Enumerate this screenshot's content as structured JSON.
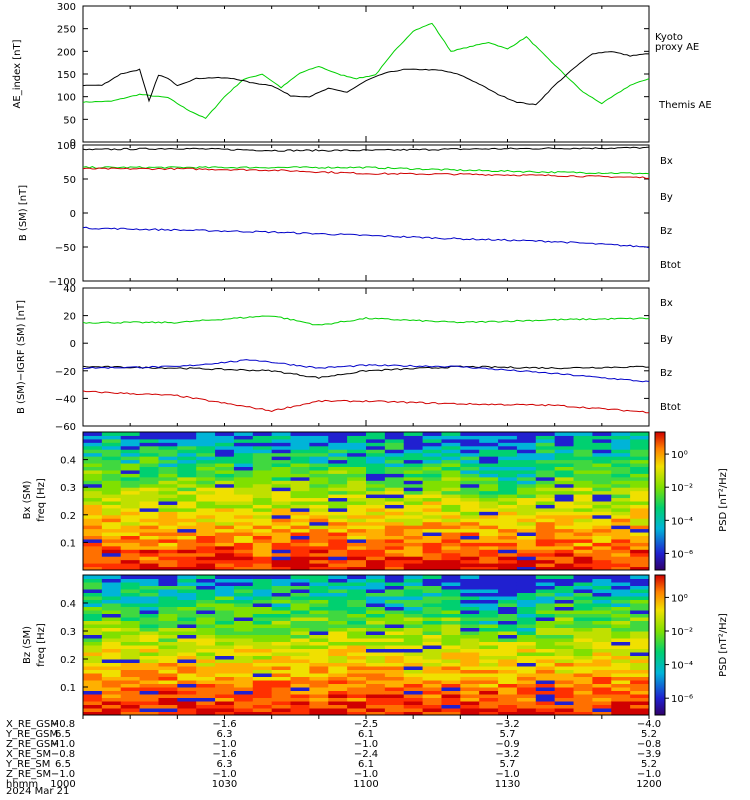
{
  "colors": {
    "kyoto": "#00d000",
    "themis": "#000000",
    "bx": "#0000c8",
    "by": "#00d000",
    "bz": "#d00000",
    "btot": "#000000"
  },
  "chart_data": [
    {
      "type": "line",
      "panel": "ae",
      "ylabel": "AE_index [nT]",
      "ylim": [
        0,
        300
      ],
      "yticks": [
        "300",
        "250",
        "200",
        "150",
        "100",
        "50",
        "0"
      ],
      "series": [
        {
          "name": "Kyoto proxy AE",
          "legend": [
            "Kyoto",
            "proxy AE"
          ],
          "color_key": "kyoto",
          "x": [
            0,
            3,
            6,
            9,
            11,
            13,
            15,
            17,
            19,
            21,
            23,
            25,
            27,
            29,
            31,
            33,
            35,
            37,
            39,
            41,
            43,
            45,
            47,
            49,
            51,
            53,
            55,
            58,
            60
          ],
          "y": [
            88,
            90,
            105,
            98,
            72,
            52,
            100,
            138,
            150,
            120,
            152,
            167,
            150,
            140,
            148,
            200,
            245,
            262,
            200,
            210,
            220,
            205,
            232,
            190,
            150,
            110,
            85,
            125,
            140
          ]
        },
        {
          "name": "Themis AE",
          "legend": [
            "Themis AE"
          ],
          "color_key": "themis",
          "x": [
            0,
            2,
            4,
            6,
            7,
            8,
            9,
            10,
            12,
            14,
            16,
            18,
            20,
            22,
            24,
            26,
            28,
            30,
            32,
            34,
            36,
            38,
            40,
            42,
            44,
            46,
            48,
            50,
            52,
            54,
            56,
            58,
            60
          ],
          "y": [
            125,
            125,
            150,
            160,
            90,
            148,
            140,
            125,
            140,
            142,
            140,
            130,
            125,
            102,
            100,
            118,
            110,
            135,
            152,
            160,
            160,
            158,
            148,
            128,
            105,
            88,
            82,
            125,
            162,
            195,
            200,
            190,
            195
          ]
        }
      ]
    },
    {
      "type": "line",
      "panel": "b-sm",
      "ylabel": "B (SM) [nT]",
      "ylim": [
        -100,
        100
      ],
      "yticks": [
        "100",
        "50",
        "0",
        "−50",
        "−100"
      ],
      "series": [
        {
          "name": "Btot",
          "color_key": "btot",
          "x": [
            0,
            10,
            20,
            30,
            40,
            50,
            60
          ],
          "y": [
            93,
            95,
            92,
            92,
            94,
            95,
            96
          ]
        },
        {
          "name": "By",
          "color_key": "by",
          "x": [
            0,
            10,
            20,
            30,
            40,
            50,
            60
          ],
          "y": [
            67,
            67,
            67,
            67,
            63,
            60,
            58
          ]
        },
        {
          "name": "Bx",
          "color_key": "bz",
          "x": [
            0,
            10,
            20,
            30,
            40,
            50,
            60
          ],
          "y": [
            65,
            65,
            63,
            58,
            57,
            55,
            52
          ]
        },
        {
          "name": "Bz",
          "color_key": "bx",
          "x": [
            0,
            10,
            20,
            30,
            40,
            50,
            60
          ],
          "y": [
            -22,
            -25,
            -28,
            -33,
            -38,
            -42,
            -50
          ]
        }
      ],
      "legend": [
        "Bx",
        "By",
        "Bz",
        "Btot"
      ]
    },
    {
      "type": "line",
      "panel": "b-sm-igrf",
      "ylabel": "B (SM)−IGRF (SM) [nT]",
      "ylim": [
        -60,
        40
      ],
      "yticks": [
        "40",
        "20",
        "0",
        "−20",
        "−40",
        "−60"
      ],
      "series": [
        {
          "name": "By",
          "color_key": "by",
          "x": [
            0,
            10,
            20,
            25,
            30,
            40,
            50,
            60
          ],
          "y": [
            15,
            15,
            20,
            13,
            18,
            15,
            17,
            18
          ]
        },
        {
          "name": "Btot",
          "color_key": "btot",
          "x": [
            0,
            10,
            20,
            25,
            30,
            40,
            50,
            60
          ],
          "y": [
            -17,
            -18,
            -20,
            -25,
            -20,
            -17,
            -18,
            -17
          ]
        },
        {
          "name": "Bx",
          "color_key": "bx",
          "x": [
            0,
            10,
            18,
            25,
            30,
            40,
            50,
            60
          ],
          "y": [
            -18,
            -17,
            -12,
            -18,
            -16,
            -17,
            -22,
            -28
          ]
        },
        {
          "name": "Bz",
          "color_key": "bz",
          "x": [
            0,
            10,
            20,
            25,
            30,
            40,
            50,
            60
          ],
          "y": [
            -35,
            -38,
            -49,
            -42,
            -42,
            -44,
            -45,
            -50
          ]
        }
      ],
      "legend": [
        "Bx",
        "By",
        "Bz",
        "Btot"
      ]
    },
    {
      "type": "heatmap",
      "panel": "bx-psd",
      "ylabel": [
        "Bx (SM)",
        "freq [Hz]"
      ],
      "ylim": [
        0,
        0.5
      ],
      "yticks": [
        "0.4",
        "0.3",
        "0.2",
        "0.1"
      ],
      "colorbar_label": "PSD [nT²/Hz]",
      "colorbar_ticks": [
        "10⁰",
        "10⁻²",
        "10⁻⁴",
        "10⁻⁶"
      ]
    },
    {
      "type": "heatmap",
      "panel": "bz-psd",
      "ylabel": [
        "Bz (SM)",
        "freq [Hz]"
      ],
      "ylim": [
        0,
        0.5
      ],
      "yticks": [
        "0.4",
        "0.3",
        "0.2",
        "0.1"
      ],
      "colorbar_label": "PSD [nT²/Hz]",
      "colorbar_ticks": [
        "10⁰",
        "10⁻²",
        "10⁻⁴",
        "10⁻⁶"
      ]
    }
  ],
  "x_axis": {
    "rows": [
      {
        "label": "X_RE_GSM",
        "values": [
          "−0.8",
          "−1.6",
          "−2.5",
          "−3.2",
          "−4.0"
        ]
      },
      {
        "label": "Y_RE_GSM",
        "values": [
          "6.5",
          "6.3",
          "6.1",
          "5.7",
          "5.2"
        ]
      },
      {
        "label": "Z_RE_GSM",
        "values": [
          "−1.0",
          "−1.0",
          "−1.0",
          "−0.9",
          "−0.8"
        ]
      },
      {
        "label": "X_RE_SM",
        "values": [
          "−0.8",
          "−1.6",
          "−2.4",
          "−3.2",
          "−3.9"
        ]
      },
      {
        "label": "Y_RE_SM",
        "values": [
          "6.5",
          "6.3",
          "6.1",
          "5.7",
          "5.2"
        ]
      },
      {
        "label": "Z_RE_SM",
        "values": [
          "−1.0",
          "−1.0",
          "−1.0",
          "−1.0",
          "−1.0"
        ]
      },
      {
        "label": "hhmm",
        "values": [
          "1000",
          "1030",
          "1100",
          "1130",
          "1200"
        ]
      }
    ],
    "date": "2024 Mar 21"
  }
}
